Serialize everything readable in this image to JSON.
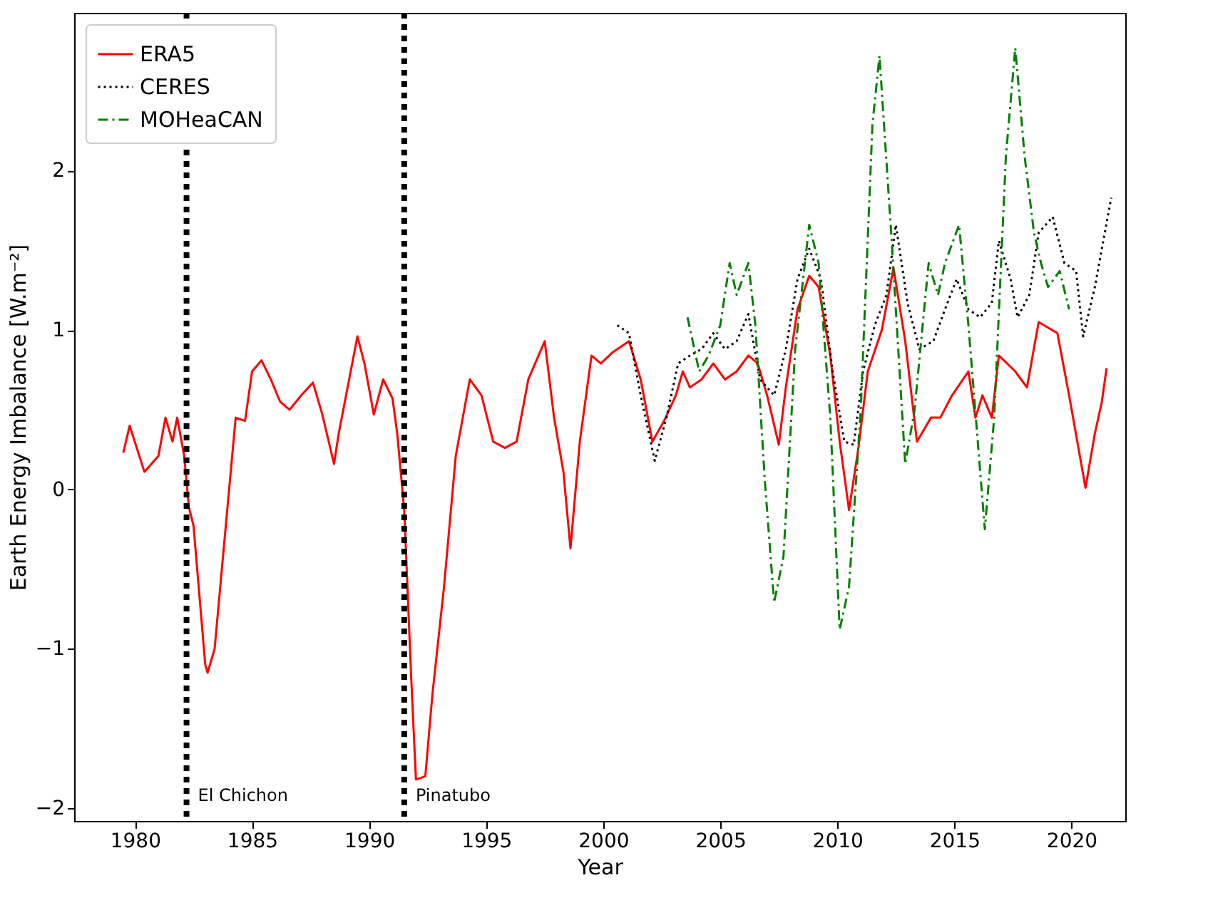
{
  "chart_data": {
    "type": "line",
    "xlabel": "Year",
    "ylabel": "Earth Energy Imbalance [W.m⁻²]",
    "xlim": [
      1977.4,
      2022.3
    ],
    "ylim": [
      -2.08,
      2.99
    ],
    "xticks": [
      1980,
      1985,
      1990,
      1995,
      2000,
      2005,
      2010,
      2015,
      2020
    ],
    "yticks": [
      {
        "value": -2,
        "label": "−2"
      },
      {
        "value": -1,
        "label": "−1"
      },
      0,
      1,
      2
    ],
    "grid": false,
    "legend": "top left",
    "series": [
      {
        "name": "ERA5",
        "color": "#ff0000",
        "line_style": "solid",
        "x": [
          1979.5,
          1979.77,
          1980.4,
          1981.0,
          1981.3,
          1981.6,
          1981.8,
          1982.1,
          1982.3,
          1982.5,
          1983.0,
          1983.1,
          1983.4,
          1984.0,
          1984.3,
          1984.7,
          1985.0,
          1985.4,
          1985.8,
          1986.2,
          1986.6,
          1987.1,
          1987.6,
          1988.0,
          1988.5,
          1988.7,
          1989.5,
          1989.8,
          1990.2,
          1990.6,
          1991.0,
          1991.2,
          1991.5,
          1991.8,
          1992.0,
          1992.4,
          1992.7,
          1993.2,
          1993.7,
          1994.3,
          1994.8,
          1995.3,
          1995.8,
          1996.3,
          1996.8,
          1997.5,
          1997.9,
          1998.3,
          1998.6,
          1999.0,
          1999.5,
          1999.9,
          2000.4,
          2001.1,
          2001.6,
          2002.1,
          2002.6,
          2003.1,
          2003.4,
          2003.7,
          2004.2,
          2004.7,
          2005.2,
          2005.7,
          2006.2,
          2006.6,
          2007.0,
          2007.5,
          2007.8,
          2008.3,
          2008.8,
          2009.2,
          2009.7,
          2010.1,
          2010.5,
          2010.9,
          2011.3,
          2011.9,
          2012.4,
          2012.9,
          2013.4,
          2014.0,
          2014.4,
          2014.9,
          2015.6,
          2015.9,
          2016.2,
          2016.6,
          2016.9,
          2017.6,
          2018.1,
          2018.6,
          2019.4,
          2019.9,
          2020.6,
          2021.0,
          2021.3,
          2021.5
        ],
        "values": [
          0.23,
          0.4,
          0.11,
          0.21,
          0.45,
          0.3,
          0.45,
          0.21,
          -0.11,
          -0.23,
          -1.1,
          -1.15,
          -1.0,
          -0.03,
          0.45,
          0.43,
          0.74,
          0.81,
          0.69,
          0.55,
          0.5,
          0.59,
          0.67,
          0.47,
          0.16,
          0.35,
          0.96,
          0.79,
          0.47,
          0.69,
          0.57,
          0.35,
          -0.13,
          -1.19,
          -1.82,
          -1.8,
          -1.29,
          -0.61,
          0.21,
          0.69,
          0.59,
          0.3,
          0.26,
          0.3,
          0.69,
          0.93,
          0.45,
          0.11,
          -0.37,
          0.3,
          0.84,
          0.79,
          0.86,
          0.93,
          0.69,
          0.3,
          0.43,
          0.59,
          0.74,
          0.64,
          0.69,
          0.79,
          0.69,
          0.74,
          0.84,
          0.79,
          0.59,
          0.28,
          0.64,
          1.13,
          1.34,
          1.27,
          0.84,
          0.3,
          -0.13,
          0.26,
          0.74,
          1.0,
          1.39,
          0.93,
          0.3,
          0.45,
          0.45,
          0.59,
          0.74,
          0.45,
          0.59,
          0.45,
          0.84,
          0.74,
          0.64,
          1.05,
          0.98,
          0.59,
          0.01,
          0.35,
          0.55,
          0.76
        ]
      },
      {
        "name": "CERES",
        "color": "#000000",
        "line_style": "dotted",
        "x": [
          2000.6,
          2001.1,
          2001.6,
          2002.2,
          2002.7,
          2003.2,
          2003.7,
          2004.2,
          2004.7,
          2005.2,
          2005.7,
          2006.2,
          2006.7,
          2007.3,
          2007.8,
          2008.3,
          2008.8,
          2009.3,
          2009.8,
          2010.3,
          2010.7,
          2011.1,
          2011.6,
          2012.1,
          2012.5,
          2013.0,
          2013.5,
          2014.1,
          2014.6,
          2015.1,
          2015.6,
          2016.1,
          2016.6,
          2016.9,
          2017.4,
          2017.7,
          2018.2,
          2018.6,
          2019.2,
          2019.7,
          2020.2,
          2020.5,
          2021.0,
          2021.7
        ],
        "values": [
          1.03,
          0.98,
          0.59,
          0.18,
          0.45,
          0.79,
          0.84,
          0.88,
          0.98,
          0.88,
          0.93,
          1.1,
          0.69,
          0.59,
          0.88,
          1.32,
          1.51,
          1.32,
          0.74,
          0.3,
          0.28,
          0.74,
          1.03,
          1.22,
          1.66,
          1.17,
          0.88,
          0.93,
          1.13,
          1.32,
          1.13,
          1.08,
          1.17,
          1.56,
          1.32,
          1.08,
          1.22,
          1.61,
          1.71,
          1.42,
          1.37,
          0.96,
          1.27,
          1.83
        ]
      },
      {
        "name": "MOHeaCAN",
        "color": "#008000",
        "line_style": "dashdot",
        "x": [
          2003.6,
          2004.1,
          2004.5,
          2005.0,
          2005.4,
          2005.7,
          2006.2,
          2006.5,
          2006.9,
          2007.3,
          2007.7,
          2008.2,
          2008.8,
          2009.2,
          2009.7,
          2010.1,
          2010.5,
          2011.0,
          2011.5,
          2011.8,
          2012.3,
          2012.9,
          2013.3,
          2013.9,
          2014.3,
          2014.6,
          2015.2,
          2015.6,
          2016.3,
          2016.7,
          2017.2,
          2017.6,
          2018.0,
          2018.4,
          2018.7,
          2019.0,
          2019.5,
          2019.9
        ],
        "values": [
          1.08,
          0.74,
          0.84,
          1.03,
          1.42,
          1.22,
          1.42,
          1.03,
          0.06,
          -0.71,
          -0.42,
          0.88,
          1.66,
          1.42,
          0.45,
          -0.88,
          -0.61,
          0.5,
          2.29,
          2.72,
          1.61,
          0.16,
          0.5,
          1.42,
          1.22,
          1.42,
          1.66,
          1.03,
          -0.25,
          0.45,
          2.09,
          2.77,
          2.09,
          1.61,
          1.42,
          1.27,
          1.37,
          1.13
        ]
      }
    ],
    "ref_lines": [
      {
        "axis": "x",
        "value": 1982.2,
        "label": "El Chichon",
        "color": "#000000",
        "line_style": "dotted"
      },
      {
        "axis": "x",
        "value": 1991.5,
        "label": "Pinatubo",
        "color": "#000000",
        "line_style": "dotted"
      }
    ]
  }
}
